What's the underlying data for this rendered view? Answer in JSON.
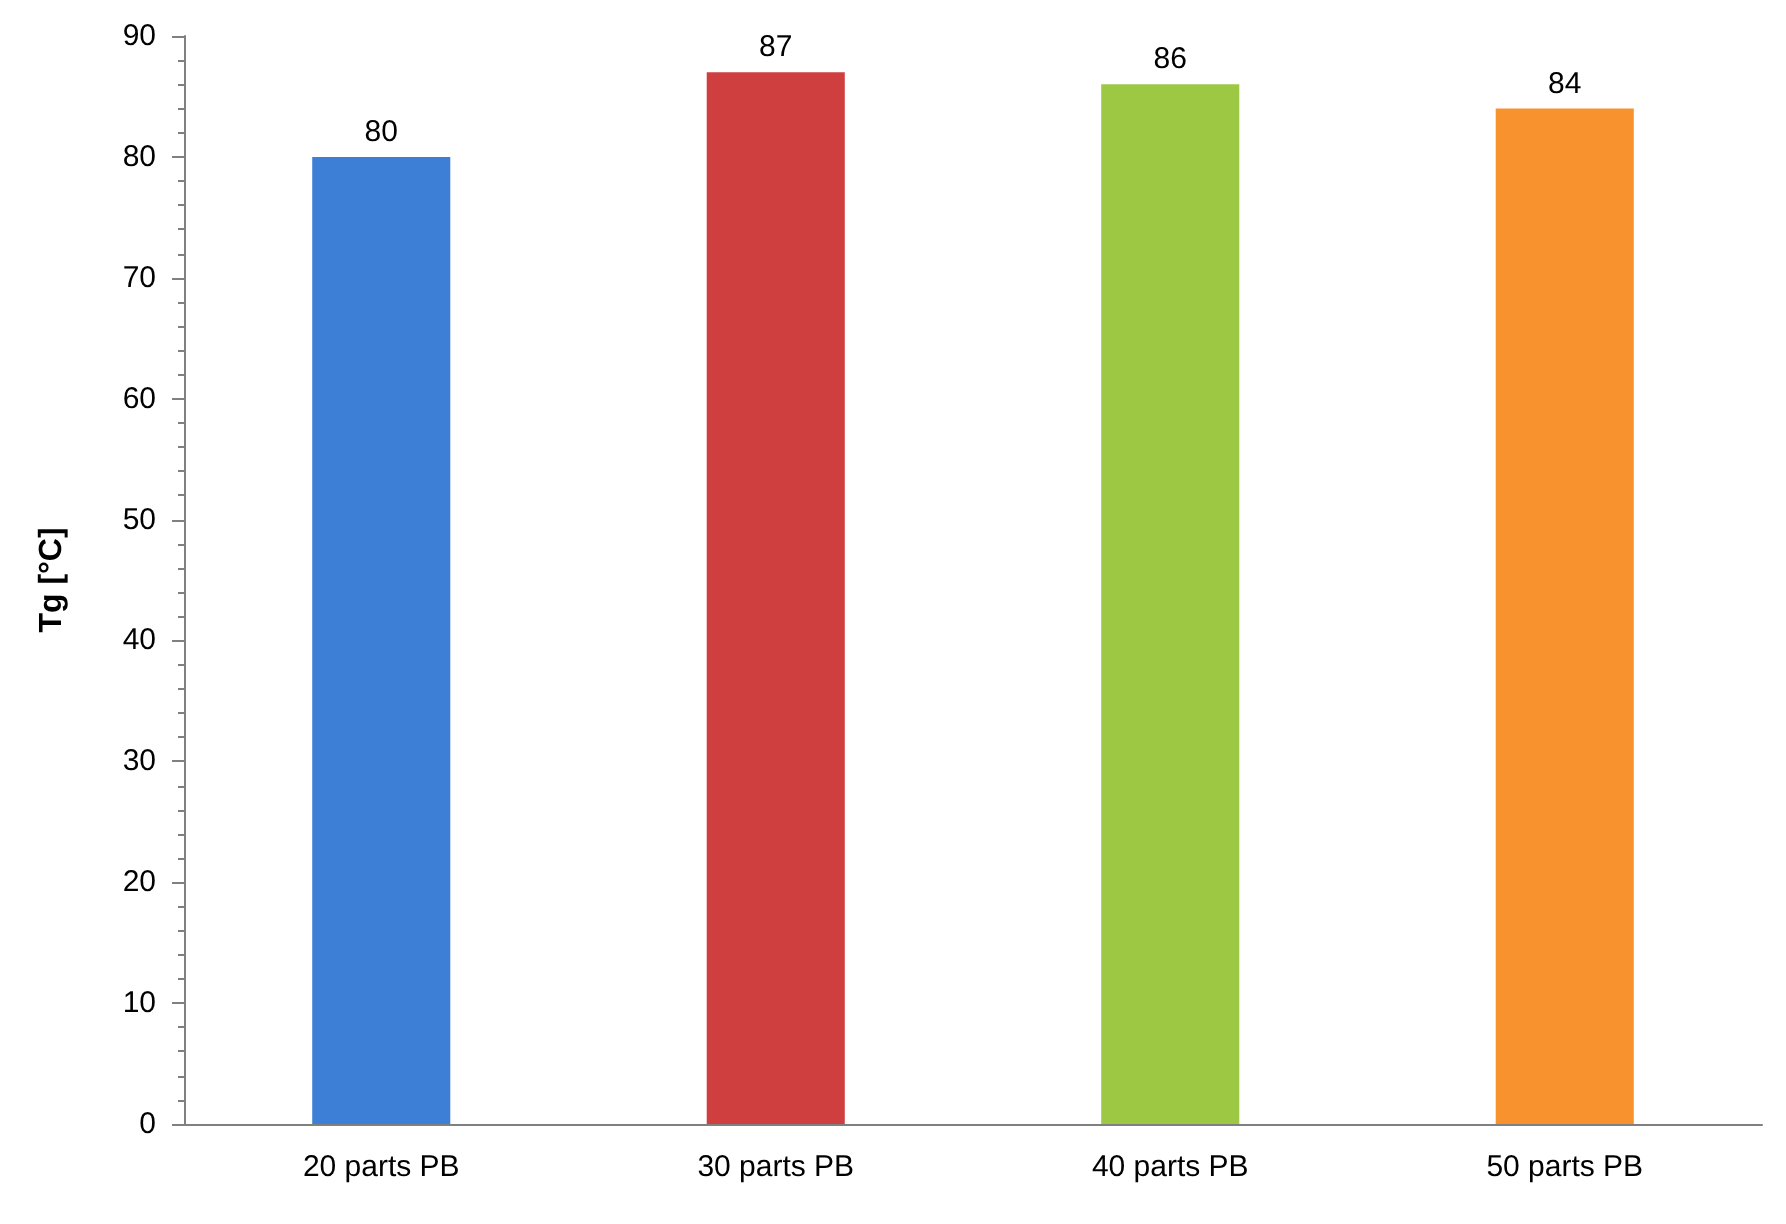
{
  "chart_data": {
    "type": "bar",
    "ylabel": "Tg [°C]",
    "categories": [
      "20 parts PB",
      "30 parts PB",
      "40 parts PB",
      "50 parts PB"
    ],
    "values": [
      80,
      87,
      86,
      84
    ],
    "colors": [
      "#3d7fd6",
      "#cf3f3f",
      "#9cc843",
      "#f7922f"
    ],
    "ylim": [
      0,
      90
    ],
    "yticks": [
      0,
      10,
      20,
      30,
      40,
      50,
      60,
      70,
      80,
      90
    ],
    "data_labels": true
  }
}
